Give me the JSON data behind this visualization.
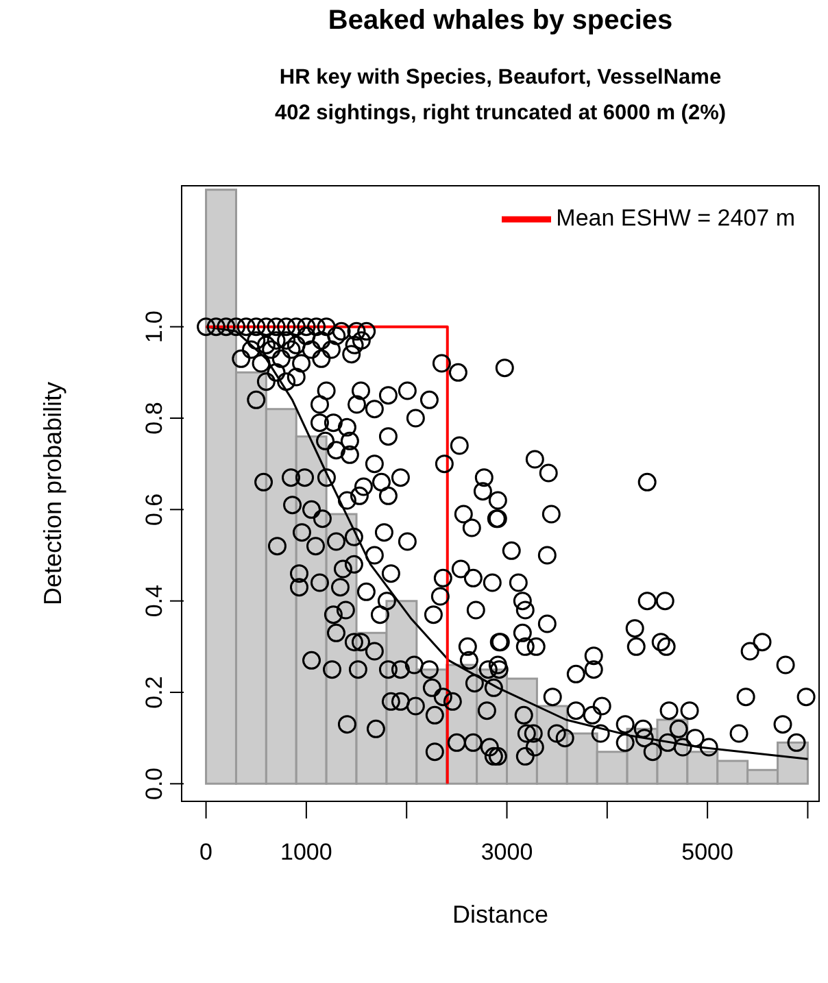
{
  "chart_data": {
    "type": "histogram",
    "title": "Beaked whales by species",
    "subtitle": "HR key with Species, Beaufort, VesselName\n402 sightings, right truncated at 6000 m (2%)",
    "xlabel": "Distance",
    "ylabel": "Detection probability",
    "xlim": [
      -250,
      6120
    ],
    "ylim": [
      -0.04,
      1.31
    ],
    "xticks": [
      0,
      1000,
      {
        "value": 2000,
        "label": null
      },
      3000,
      {
        "value": 4000,
        "label": null
      },
      5000,
      {
        "value": 6000,
        "label": null
      }
    ],
    "yticks": [
      {
        "value": 0,
        "label": "0.0"
      },
      {
        "value": 0.2,
        "label": "0.2"
      },
      {
        "value": 0.4,
        "label": "0.4"
      },
      {
        "value": 0.6,
        "label": "0.6"
      },
      {
        "value": 0.8,
        "label": "0.8"
      },
      {
        "value": 1,
        "label": "1.0"
      }
    ],
    "grid": false,
    "legend": "top right",
    "series": [
      {
        "type": "histogram",
        "color": "#cccccc",
        "bins": [
          0,
          300,
          600,
          900,
          1200,
          1500,
          1800,
          2100,
          2400,
          2700,
          3000,
          3300,
          3600,
          3900,
          4200,
          4500,
          4800,
          5100,
          5400,
          5700,
          6000
        ],
        "values": [
          1.3,
          0.9,
          0.82,
          0.76,
          0.59,
          0.33,
          0.4,
          0.25,
          0.26,
          0.25,
          0.23,
          0.17,
          0.11,
          0.07,
          0.12,
          0.14,
          0.07,
          0.05,
          0.03,
          0.09
        ]
      },
      {
        "type": "scatter",
        "color": "#000000",
        "marker": "circle",
        "x": [
          0,
          100,
          200,
          300,
          400,
          500,
          600,
          700,
          800,
          900,
          1000,
          1100,
          1200,
          1350,
          1500,
          1600,
          1550,
          1480,
          500,
          600,
          700,
          800,
          900,
          1000,
          1150,
          1300,
          450,
          650,
          850,
          1050,
          1250,
          350,
          550,
          750,
          950,
          1150,
          1450,
          700,
          800,
          600,
          900,
          500,
          1200,
          1544,
          1817,
          2008,
          2227,
          1503,
          1680,
          2090,
          1817,
          1134,
          1134,
          1270,
          1407,
          1434,
          1434,
          1189,
          1298,
          1680,
          1749,
          1940,
          1817,
          1571,
          1530,
          1407,
          1202,
          574,
          847,
          984,
          861,
          1052,
          956,
          1093,
          1161,
          1298,
          1475,
          1475,
          1366,
          929,
          929,
          1134,
          1339,
          710,
          1776,
          2008,
          1680,
          1844,
          1598,
          1803,
          1735,
          1270,
          1393,
          1298,
          1475,
          1544,
          1680,
          1052,
          1257,
          1516,
          1817,
          1940,
          2076,
          2227,
          2254,
          2363,
          2459,
          1844,
          1940,
          2090,
          2281,
          1407,
          1694,
          2281,
          2500,
          2664,
          2828,
          2869,
          2350,
          2514,
          2377,
          2527,
          2773,
          2760,
          2910,
          2568,
          2650,
          2896,
          2363,
          2336,
          2541,
          2664,
          2855,
          2691,
          2268,
          2609,
          2923,
          2623,
          2814,
          2910,
          2678,
          2869,
          2801,
          2978,
          3279,
          3415,
          4399,
          2910,
          3443,
          3046,
          3402,
          3115,
          3156,
          3183,
          3402,
          3156,
          3183,
          3292,
          2937,
          2923,
          3169,
          3197,
          3265,
          3279,
          3183,
          2910,
          3456,
          3497,
          3579,
          3689,
          3866,
          3866,
          3689,
          3852,
          3948,
          3934,
          4180,
          4180,
          4276,
          4290,
          4399,
          4577,
          4536,
          4590,
          4358,
          4372,
          4454,
          4617,
          4822,
          4713,
          4877,
          4604,
          4754,
          5014,
          5314,
          5383,
          5424,
          5546,
          5779,
          5751,
          5888,
          5984
        ],
        "values": [
          1,
          1,
          1,
          1,
          1,
          1,
          1,
          1,
          1,
          1,
          1,
          1,
          1,
          0.99,
          0.99,
          0.99,
          0.97,
          0.96,
          0.97,
          0.96,
          0.97,
          0.97,
          0.96,
          0.98,
          0.97,
          0.98,
          0.95,
          0.95,
          0.95,
          0.95,
          0.95,
          0.93,
          0.92,
          0.93,
          0.92,
          0.93,
          0.94,
          0.9,
          0.88,
          0.88,
          0.89,
          0.84,
          0.86,
          0.86,
          0.85,
          0.86,
          0.84,
          0.83,
          0.82,
          0.8,
          0.76,
          0.83,
          0.79,
          0.79,
          0.78,
          0.75,
          0.72,
          0.75,
          0.73,
          0.7,
          0.66,
          0.67,
          0.63,
          0.65,
          0.63,
          0.62,
          0.67,
          0.66,
          0.67,
          0.67,
          0.61,
          0.6,
          0.55,
          0.52,
          0.58,
          0.53,
          0.54,
          0.48,
          0.47,
          0.46,
          0.43,
          0.44,
          0.43,
          0.52,
          0.55,
          0.53,
          0.5,
          0.46,
          0.42,
          0.4,
          0.37,
          0.37,
          0.38,
          0.33,
          0.31,
          0.31,
          0.29,
          0.27,
          0.25,
          0.25,
          0.25,
          0.25,
          0.26,
          0.25,
          0.21,
          0.19,
          0.18,
          0.18,
          0.18,
          0.17,
          0.15,
          0.13,
          0.12,
          0.07,
          0.09,
          0.09,
          0.08,
          0.06,
          0.92,
          0.9,
          0.7,
          0.74,
          0.67,
          0.64,
          0.62,
          0.59,
          0.56,
          0.58,
          0.45,
          0.41,
          0.47,
          0.45,
          0.44,
          0.38,
          0.37,
          0.3,
          0.31,
          0.27,
          0.25,
          0.26,
          0.22,
          0.21,
          0.16,
          0.91,
          0.71,
          0.68,
          0.66,
          0.58,
          0.59,
          0.51,
          0.5,
          0.44,
          0.4,
          0.38,
          0.35,
          0.33,
          0.3,
          0.3,
          0.31,
          0.25,
          0.15,
          0.11,
          0.11,
          0.08,
          0.06,
          0.06,
          0.19,
          0.11,
          0.1,
          0.24,
          0.28,
          0.25,
          0.16,
          0.15,
          0.17,
          0.11,
          0.13,
          0.09,
          0.34,
          0.3,
          0.4,
          0.4,
          0.31,
          0.3,
          0.12,
          0.1,
          0.07,
          0.16,
          0.16,
          0.12,
          0.1,
          0.09,
          0.08,
          0.08,
          0.11,
          0.19,
          0.29,
          0.31,
          0.26,
          0.13,
          0.09,
          0.19
        ]
      },
      {
        "type": "line",
        "color": "#000000",
        "marker": "none",
        "x": [
          0,
          300,
          600,
          860,
          1200,
          1640,
          2050,
          2420,
          2910,
          3590,
          4235,
          4920,
          6000
        ],
        "values": [
          1,
          0.99,
          0.93,
          0.84,
          0.68,
          0.48,
          0.36,
          0.27,
          0.21,
          0.14,
          0.105,
          0.08,
          0.054
        ]
      },
      {
        "type": "line",
        "name": "Mean ESHW = 2407 m",
        "color": "#ff0000",
        "marker": "none",
        "x": [
          0,
          2407,
          2407
        ],
        "values": [
          1,
          1,
          0
        ]
      }
    ]
  }
}
